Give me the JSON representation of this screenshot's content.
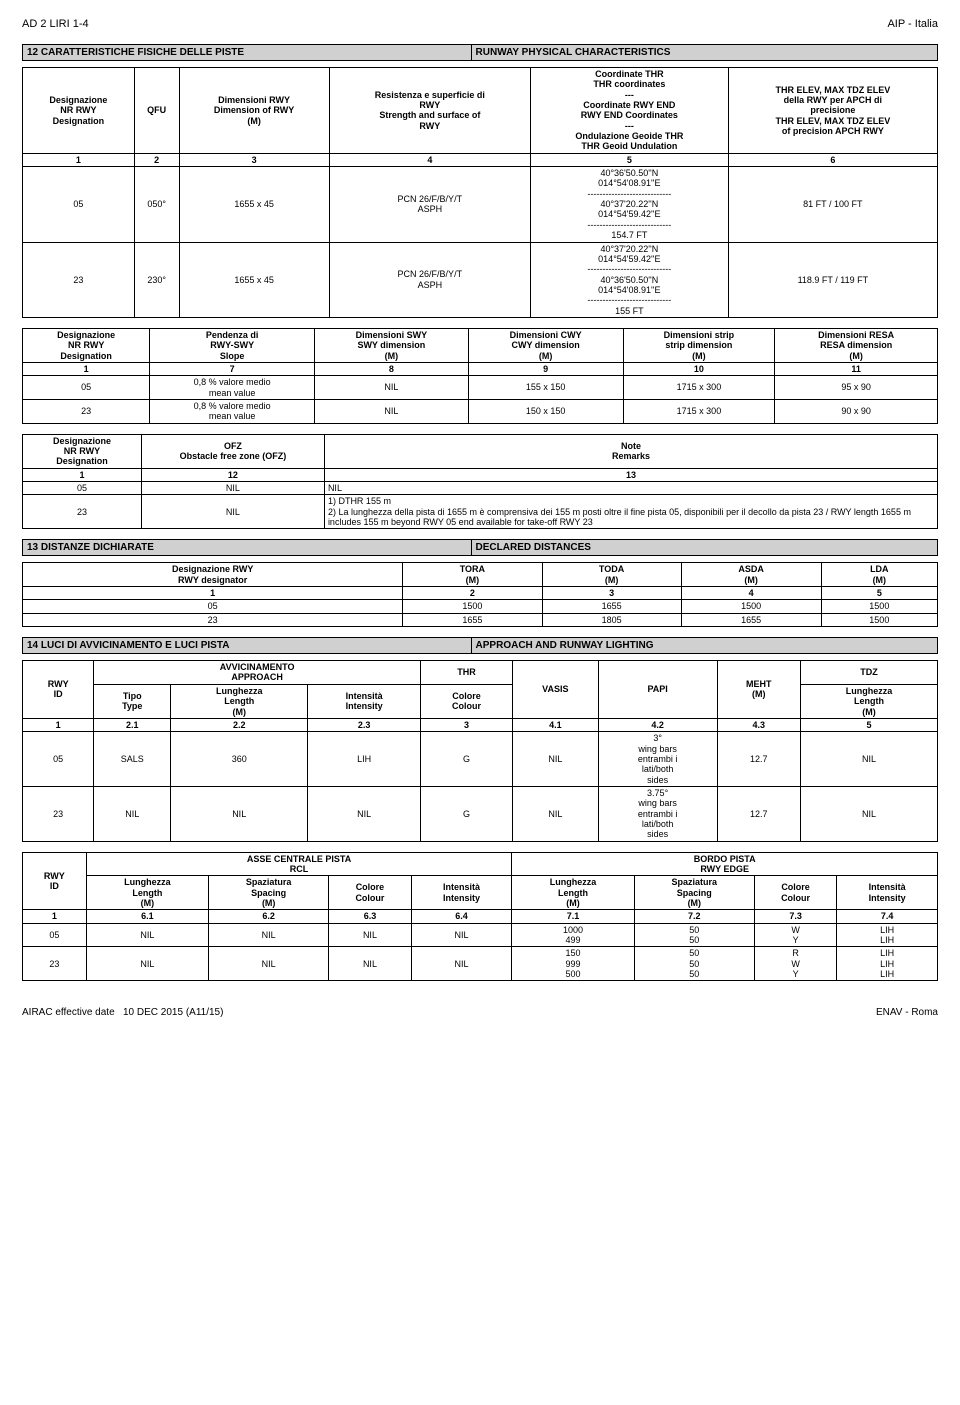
{
  "header": {
    "left": "AD 2 LIRI 1-4",
    "right": "AIP - Italia"
  },
  "footer": {
    "left": "AIRAC effective date",
    "mid": "10 DEC 2015 (A11/15)",
    "right": "ENAV - Roma"
  },
  "s12": {
    "num": "12",
    "it": "CARATTERISTICHE FISICHE DELLE PISTE",
    "en": "RUNWAY PHYSICAL CHARACTERISTICS",
    "h": [
      "Designazione\nNR RWY\nDesignation",
      "QFU",
      "Dimensioni RWY\nDimension of RWY\n(M)",
      "Resistenza e superficie di\nRWY\nStrength and surface of\nRWY",
      "Coordinate THR\nTHR coordinates\n---\nCoordinate RWY END\nRWY END Coordinates\n---\nOndulazione Geoide THR\nTHR Geoid Undulation",
      "THR ELEV, MAX TDZ ELEV\ndella RWY per APCH di\nprecisione\nTHR ELEV, MAX TDZ ELEV\nof precision APCH RWY"
    ],
    "n": [
      "1",
      "2",
      "3",
      "4",
      "5",
      "6"
    ],
    "r": [
      {
        "a": "05",
        "b": "050°",
        "c": "1655 x 45",
        "d": "PCN 26/F/B/Y/T\nASPH",
        "e": "40°36'50.50''N\n014°54'08.91''E\n----------------------------\n40°37'20.22''N\n014°54'59.42''E\n----------------------------\n154.7 FT",
        "f": "81 FT / 100 FT"
      },
      {
        "a": "23",
        "b": "230°",
        "c": "1655 x 45",
        "d": "PCN 26/F/B/Y/T\nASPH",
        "e": "40°37'20.22''N\n014°54'59.42''E\n----------------------------\n40°36'50.50''N\n014°54'08.91''E\n----------------------------\n155 FT",
        "f": "118.9 FT / 119 FT"
      }
    ],
    "h2": [
      "Designazione\nNR RWY\nDesignation",
      "Pendenza di\nRWY-SWY\nSlope",
      "Dimensioni SWY\nSWY dimension\n(M)",
      "Dimensioni CWY\nCWY dimension\n(M)",
      "Dimensioni strip\nstrip dimension\n(M)",
      "Dimensioni RESA\nRESA dimension\n(M)"
    ],
    "n2": [
      "1",
      "7",
      "8",
      "9",
      "10",
      "11"
    ],
    "r2": [
      {
        "a": "05",
        "b": "0,8 % valore medio\nmean value",
        "c": "NIL",
        "d": "155 x 150",
        "e": "1715 x 300",
        "f": "95 x 90"
      },
      {
        "a": "23",
        "b": "0,8 % valore medio\nmean value",
        "c": "NIL",
        "d": "150 x 150",
        "e": "1715 x 300",
        "f": "90 x 90"
      }
    ],
    "h3": [
      "Designazione\nNR RWY\nDesignation",
      "OFZ\nObstacle free zone (OFZ)",
      "Note\nRemarks"
    ],
    "n3": [
      "1",
      "12",
      "13"
    ],
    "r3": [
      {
        "a": "05",
        "b": "NIL",
        "c": "NIL"
      },
      {
        "a": "23",
        "b": "NIL",
        "c": "1) DTHR 155 m\n2) La lunghezza della pista di 1655 m è comprensiva dei 155 m posti oltre il fine pista 05, disponibili per il decollo da pista 23 / RWY length 1655 m includes 155 m beyond RWY 05 end available for take-off RWY 23"
      }
    ]
  },
  "s13": {
    "num": "13",
    "it": "DISTANZE DICHIARATE",
    "en": "DECLARED DISTANCES",
    "h": [
      "Designazione RWY\nRWY designator",
      "TORA\n(M)",
      "TODA\n(M)",
      "ASDA\n(M)",
      "LDA\n(M)"
    ],
    "n": [
      "1",
      "2",
      "3",
      "4",
      "5"
    ],
    "r": [
      [
        "05",
        "1500",
        "1655",
        "1500",
        "1500"
      ],
      [
        "23",
        "1655",
        "1805",
        "1655",
        "1500"
      ]
    ]
  },
  "s14": {
    "num": "14",
    "it": "LUCI DI AVVICINAMENTO E LUCI PISTA",
    "en": "APPROACH AND RUNWAY LIGHTING",
    "h1": [
      "RWY\nID",
      "AVVICINAMENTO\nAPPROACH",
      "THR",
      "VASIS",
      "PAPI",
      "MEHT\n(M)",
      "TDZ"
    ],
    "h1b": [
      "Tipo\nType",
      "Lunghezza\nLength\n(M)",
      "Intensità\nIntensity",
      "Colore\nColour",
      "",
      "",
      "",
      "Lunghezza\nLength\n(M)"
    ],
    "n1": [
      "1",
      "2.1",
      "2.2",
      "2.3",
      "3",
      "4.1",
      "4.2",
      "4.3",
      "5"
    ],
    "r1": [
      [
        "05",
        "SALS",
        "360",
        "LIH",
        "G",
        "NIL",
        "3°\nwing bars\nentrambi i\nlati/both\nsides",
        "12.7",
        "NIL"
      ],
      [
        "23",
        "NIL",
        "NIL",
        "NIL",
        "G",
        "NIL",
        "3.75°\nwing bars\nentrambi i\nlati/both\nsides",
        "12.7",
        "NIL"
      ]
    ],
    "h2": [
      "RWY\nID",
      "ASSE CENTRALE PISTA\nRCL",
      "BORDO PISTA\nRWY EDGE"
    ],
    "h2b": [
      "Lunghezza\nLength\n(M)",
      "Spaziatura\nSpacing\n(M)",
      "Colore\nColour",
      "Intensità\nIntensity",
      "Lunghezza\nLength\n(M)",
      "Spaziatura\nSpacing\n(M)",
      "Colore\nColour",
      "Intensità\nIntensity"
    ],
    "n2": [
      "1",
      "6.1",
      "6.2",
      "6.3",
      "6.4",
      "7.1",
      "7.2",
      "7.3",
      "7.4"
    ],
    "r2": [
      [
        "05",
        "NIL",
        "NIL",
        "NIL",
        "NIL",
        "1000\n499",
        "50\n50",
        "W\nY",
        "LIH\nLIH"
      ],
      [
        "23",
        "NIL",
        "NIL",
        "NIL",
        "NIL",
        "150\n999\n500",
        "50\n50\n50",
        "R\nW\nY",
        "LIH\nLIH\nLIH"
      ]
    ]
  }
}
